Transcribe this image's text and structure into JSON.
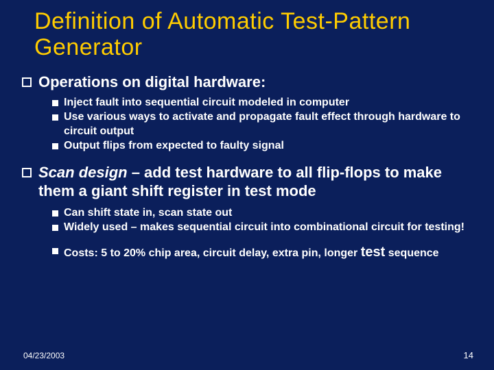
{
  "colors": {
    "background": "#0b1f5b",
    "title": "#ffcc00",
    "text": "#ffffff",
    "bullet_outline": "#ffffff",
    "bullet_fill": "#ffffff"
  },
  "typography": {
    "title_fontsize": 34,
    "main_fontsize": 22,
    "sub_fontsize": 16,
    "footer_fontsize": 12,
    "title_font": "Impact",
    "body_font": "Verdana",
    "body_weight": 700
  },
  "title": "Definition of Automatic Test-Pattern Generator",
  "main1": "Operations on digital hardware:",
  "sub1a": "Inject fault into sequential circuit modeled in computer",
  "sub1b": "Use various ways to activate and propagate fault effect through hardware to circuit output",
  "sub1c": "Output flips from expected to faulty signal",
  "main2_italic": "Scan design",
  "main2_rest": " – add test hardware to all flip-flops to make them a giant shift register in test mode",
  "sub2a": "Can shift state in, scan state out",
  "sub2b": "Widely used – makes sequential circuit into combinational circuit for testing!",
  "sub2c_pre": "Costs: 5 to 20% chip area, circuit delay, extra pin, longer ",
  "sub2c_test": "test",
  "sub2c_post": " sequence",
  "footer_date": "04/23/2003",
  "footer_num": "14"
}
